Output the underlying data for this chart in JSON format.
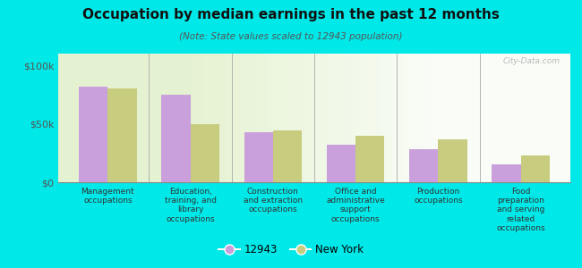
{
  "title": "Occupation by median earnings in the past 12 months",
  "subtitle": "(Note: State values scaled to 12943 population)",
  "categories": [
    "Management\noccupations",
    "Education,\ntraining, and\nlibrary\noccupations",
    "Construction\nand extraction\noccupations",
    "Office and\nadministrative\nsupport\noccupations",
    "Production\noccupations",
    "Food\npreparation\nand serving\nrelated\noccupations"
  ],
  "series_12943": [
    82000,
    75000,
    43000,
    32000,
    28000,
    15000
  ],
  "series_ny": [
    80000,
    50000,
    44000,
    40000,
    37000,
    23000
  ],
  "color_12943": "#c9a0dc",
  "color_ny": "#c8cc7e",
  "background_color": "#00e8e8",
  "yticks": [
    0,
    50000,
    100000
  ],
  "ytick_labels": [
    "$0",
    "$50k",
    "$100k"
  ],
  "ylim": [
    0,
    110000
  ],
  "legend_labels": [
    "12943",
    "New York"
  ],
  "watermark": "City-Data.com"
}
